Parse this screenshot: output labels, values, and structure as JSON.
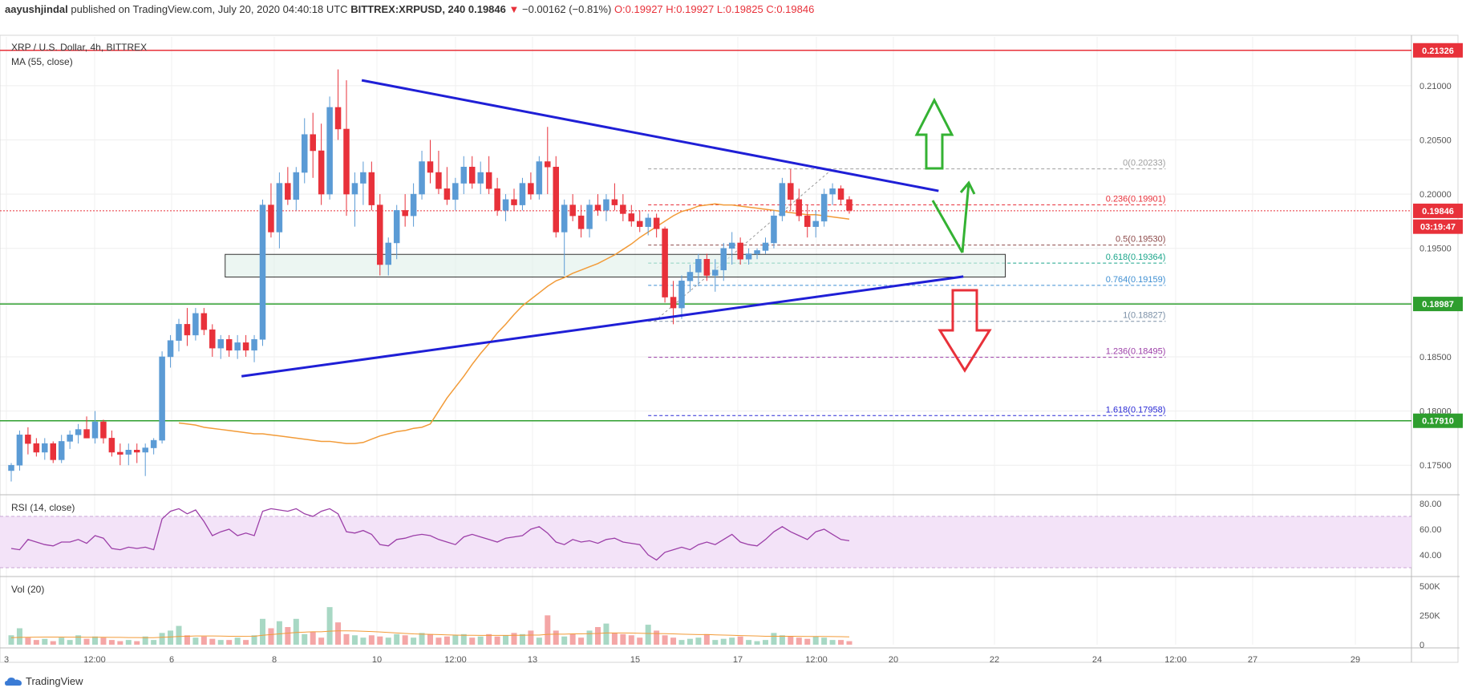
{
  "header": {
    "author": "aayushjindal",
    "published": "published on TradingView.com, July 20, 2020 04:40:18 UTC",
    "symbol_line": "BITTREX:XRPUSD, 240",
    "last": "0.19846",
    "change": "−0.00162 (−0.81%)",
    "ohlc": "O:0.19927 H:0.19927 L:0.19825 C:0.19846"
  },
  "legend": {
    "title": "XRP / U.S. Dollar, 4h, BITTREX",
    "ma": "MA (55, close)",
    "rsi": "RSI (14, close)",
    "vol": "Vol (20)"
  },
  "brand": {
    "name": "TradingView"
  },
  "colors": {
    "up": "#5b9bd5",
    "down": "#e8313a",
    "ma": "#f29b38",
    "trend": "#1f1fd6",
    "support": "#2e9e2e",
    "resistance": "#e8313a",
    "arrow_up": "#34b233",
    "arrow_down": "#e8313a",
    "rsi": "#9c3fa8",
    "rsi_band": "#f3e3f8"
  },
  "chart_data": {
    "type": "candlestick",
    "title": "XRP / U.S. Dollar, 4h, BITTREX",
    "ylim": [
      0.1725,
      0.2145
    ],
    "y_ticks": [
      "0.21000",
      "0.20500",
      "0.20000",
      "0.19500",
      "0.19000",
      "0.18500",
      "0.18000",
      "0.17500"
    ],
    "x_ticks": [
      "3",
      "12:00",
      "6",
      "8",
      "10",
      "12:00",
      "13",
      "15",
      "17",
      "12:00",
      "20",
      "22",
      "24",
      "12:00",
      "27",
      "29"
    ],
    "price_labels": [
      {
        "text": "0.21326",
        "value": 0.21326,
        "color": "#e8313a"
      },
      {
        "text": "0.19846",
        "value": 0.19846,
        "color": "#e8313a"
      },
      {
        "text": "03:19:47",
        "value": 0.197,
        "color": "#e8313a"
      },
      {
        "text": "0.18987",
        "value": 0.18987,
        "color": "#2e9e2e"
      },
      {
        "text": "0.17910",
        "value": 0.1791,
        "color": "#2e9e2e"
      }
    ],
    "horizontal_lines": [
      {
        "value": 0.21326,
        "color": "#e8313a",
        "style": "solid"
      },
      {
        "value": 0.19846,
        "color": "#e8313a",
        "style": "dotted"
      },
      {
        "value": 0.18987,
        "color": "#2e9e2e",
        "style": "solid"
      },
      {
        "value": 0.1791,
        "color": "#2e9e2e",
        "style": "solid"
      }
    ],
    "fib_levels": [
      {
        "label": "0(0.20233)",
        "value": 0.20233,
        "color": "#9e9e9e"
      },
      {
        "label": "0.236(0.19901)",
        "value": 0.19901,
        "color": "#e8313a"
      },
      {
        "label": "0.5(0.19530)",
        "value": 0.1953,
        "color": "#8d4a4a"
      },
      {
        "label": "0.618(0.19364)",
        "value": 0.19364,
        "color": "#1aa58a"
      },
      {
        "label": "0.764(0.19159)",
        "value": 0.19159,
        "color": "#3f8fd2"
      },
      {
        "label": "1(0.18827)",
        "value": 0.18827,
        "color": "#7a8fa6"
      },
      {
        "label": "1.236(0.18495)",
        "value": 0.18495,
        "color": "#9c3fa8"
      },
      {
        "label": "1.618(0.17958)",
        "value": 0.17958,
        "color": "#2a2ad6"
      }
    ],
    "ma_values": [
      0.1789,
      0.1788,
      0.1787,
      0.1785,
      0.1784,
      0.1783,
      0.1782,
      0.1781,
      0.178,
      0.1779,
      0.1779,
      0.1778,
      0.1777,
      0.1776,
      0.1775,
      0.1774,
      0.1773,
      0.1772,
      0.1772,
      0.1771,
      0.177,
      0.177,
      0.1771,
      0.1774,
      0.1777,
      0.1779,
      0.1781,
      0.1782,
      0.1784,
      0.1785,
      0.1788,
      0.18,
      0.1812,
      0.1822,
      0.1832,
      0.1843,
      0.1853,
      0.1862,
      0.1872,
      0.188,
      0.1889,
      0.1897,
      0.1903,
      0.1909,
      0.1915,
      0.192,
      0.1923,
      0.1927,
      0.193,
      0.1933,
      0.1936,
      0.194,
      0.1944,
      0.1949,
      0.1954,
      0.196,
      0.1965,
      0.197,
      0.1975,
      0.198,
      0.1984,
      0.1986,
      0.1989,
      0.199,
      0.1991,
      0.199,
      0.199,
      0.1989,
      0.1988,
      0.1987,
      0.1986,
      0.1985,
      0.1984,
      0.1983,
      0.1982,
      0.1981,
      0.1981,
      0.198,
      0.1979,
      0.1978,
      0.1977
    ],
    "candles": [
      [
        0.1745,
        0.1752,
        0.1735,
        0.175
      ],
      [
        0.175,
        0.1782,
        0.1745,
        0.1778
      ],
      [
        0.1778,
        0.1785,
        0.176,
        0.177
      ],
      [
        0.177,
        0.1775,
        0.1758,
        0.1762
      ],
      [
        0.1762,
        0.1775,
        0.1755,
        0.177
      ],
      [
        0.177,
        0.1772,
        0.1752,
        0.1755
      ],
      [
        0.1755,
        0.1778,
        0.1752,
        0.1772
      ],
      [
        0.1772,
        0.1782,
        0.1765,
        0.1778
      ],
      [
        0.1778,
        0.1788,
        0.177,
        0.1783
      ],
      [
        0.1783,
        0.1795,
        0.1775,
        0.1775
      ],
      [
        0.1775,
        0.18,
        0.177,
        0.179
      ],
      [
        0.179,
        0.1792,
        0.177,
        0.1775
      ],
      [
        0.1775,
        0.1782,
        0.1758,
        0.1762
      ],
      [
        0.1762,
        0.177,
        0.175,
        0.176
      ],
      [
        0.176,
        0.177,
        0.175,
        0.1764
      ],
      [
        0.1764,
        0.177,
        0.1752,
        0.1762
      ],
      [
        0.1762,
        0.177,
        0.174,
        0.1766
      ],
      [
        0.1766,
        0.1775,
        0.176,
        0.1773
      ],
      [
        0.1773,
        0.1855,
        0.177,
        0.185
      ],
      [
        0.185,
        0.187,
        0.184,
        0.1865
      ],
      [
        0.1865,
        0.1885,
        0.1855,
        0.188
      ],
      [
        0.188,
        0.1895,
        0.186,
        0.187
      ],
      [
        0.187,
        0.1895,
        0.1865,
        0.189
      ],
      [
        0.189,
        0.1895,
        0.187,
        0.1875
      ],
      [
        0.1875,
        0.188,
        0.185,
        0.1858
      ],
      [
        0.1858,
        0.187,
        0.1848,
        0.1866
      ],
      [
        0.1866,
        0.187,
        0.185,
        0.1856
      ],
      [
        0.1856,
        0.187,
        0.1848,
        0.1863
      ],
      [
        0.1863,
        0.187,
        0.185,
        0.1856
      ],
      [
        0.1856,
        0.187,
        0.1845,
        0.1866
      ],
      [
        0.1866,
        0.1995,
        0.186,
        0.199
      ],
      [
        0.199,
        0.201,
        0.196,
        0.1965
      ],
      [
        0.1965,
        0.202,
        0.195,
        0.201
      ],
      [
        0.201,
        0.2025,
        0.199,
        0.1995
      ],
      [
        0.1995,
        0.2025,
        0.1985,
        0.202
      ],
      [
        0.202,
        0.207,
        0.201,
        0.2055
      ],
      [
        0.2055,
        0.2075,
        0.2015,
        0.204
      ],
      [
        0.204,
        0.2065,
        0.199,
        0.2
      ],
      [
        0.2,
        0.209,
        0.1995,
        0.208
      ],
      [
        0.208,
        0.2115,
        0.205,
        0.206
      ],
      [
        0.206,
        0.2105,
        0.198,
        0.2
      ],
      [
        0.2,
        0.202,
        0.197,
        0.201
      ],
      [
        0.201,
        0.203,
        0.199,
        0.202
      ],
      [
        0.202,
        0.203,
        0.1985,
        0.199
      ],
      [
        0.199,
        0.2,
        0.1925,
        0.1935
      ],
      [
        0.1935,
        0.196,
        0.1925,
        0.1955
      ],
      [
        0.1955,
        0.199,
        0.194,
        0.1985
      ],
      [
        0.1985,
        0.2,
        0.197,
        0.198
      ],
      [
        0.198,
        0.201,
        0.197,
        0.2
      ],
      [
        0.2,
        0.204,
        0.1995,
        0.203
      ],
      [
        0.203,
        0.205,
        0.201,
        0.202
      ],
      [
        0.202,
        0.204,
        0.2,
        0.2005
      ],
      [
        0.2005,
        0.2025,
        0.199,
        0.1995
      ],
      [
        0.1995,
        0.2015,
        0.1985,
        0.201
      ],
      [
        0.201,
        0.2035,
        0.2,
        0.2025
      ],
      [
        0.2025,
        0.2035,
        0.2005,
        0.201
      ],
      [
        0.201,
        0.203,
        0.2,
        0.202
      ],
      [
        0.202,
        0.2035,
        0.2,
        0.2005
      ],
      [
        0.2005,
        0.2015,
        0.198,
        0.1985
      ],
      [
        0.1985,
        0.2,
        0.1975,
        0.1995
      ],
      [
        0.1995,
        0.2005,
        0.1985,
        0.199
      ],
      [
        0.199,
        0.2015,
        0.1985,
        0.201
      ],
      [
        0.201,
        0.202,
        0.1995,
        0.2
      ],
      [
        0.2,
        0.2035,
        0.1995,
        0.203
      ],
      [
        0.203,
        0.2062,
        0.2,
        0.2025
      ],
      [
        0.2025,
        0.2035,
        0.196,
        0.1965
      ],
      [
        0.1965,
        0.1995,
        0.1925,
        0.199
      ],
      [
        0.199,
        0.2,
        0.1975,
        0.198
      ],
      [
        0.198,
        0.199,
        0.196,
        0.1968
      ],
      [
        0.1968,
        0.1995,
        0.196,
        0.199
      ],
      [
        0.199,
        0.2,
        0.198,
        0.1985
      ],
      [
        0.1985,
        0.2,
        0.1975,
        0.1995
      ],
      [
        0.1995,
        0.201,
        0.1985,
        0.199
      ],
      [
        0.199,
        0.2,
        0.1975,
        0.1982
      ],
      [
        0.1982,
        0.199,
        0.197,
        0.1975
      ],
      [
        0.1975,
        0.1985,
        0.1965,
        0.197
      ],
      [
        0.197,
        0.1982,
        0.1962,
        0.1978
      ],
      [
        0.1978,
        0.1982,
        0.196,
        0.1968
      ],
      [
        0.1968,
        0.197,
        0.19,
        0.1905
      ],
      [
        0.1905,
        0.192,
        0.188,
        0.1895
      ],
      [
        0.1895,
        0.1925,
        0.1885,
        0.192
      ],
      [
        0.192,
        0.1935,
        0.191,
        0.1928
      ],
      [
        0.1928,
        0.1945,
        0.1915,
        0.194
      ],
      [
        0.194,
        0.1945,
        0.192,
        0.1925
      ],
      [
        0.1925,
        0.194,
        0.191,
        0.193
      ],
      [
        0.193,
        0.1955,
        0.192,
        0.195
      ],
      [
        0.195,
        0.1965,
        0.1935,
        0.1955
      ],
      [
        0.1955,
        0.196,
        0.1935,
        0.194
      ],
      [
        0.194,
        0.195,
        0.1935,
        0.1945
      ],
      [
        0.1945,
        0.195,
        0.194,
        0.1948
      ],
      [
        0.1948,
        0.196,
        0.1945,
        0.1955
      ],
      [
        0.1955,
        0.1985,
        0.195,
        0.198
      ],
      [
        0.198,
        0.2015,
        0.1975,
        0.201
      ],
      [
        0.201,
        0.2023,
        0.1985,
        0.1995
      ],
      [
        0.1995,
        0.2005,
        0.1975,
        0.198
      ],
      [
        0.198,
        0.199,
        0.196,
        0.197
      ],
      [
        0.197,
        0.1985,
        0.196,
        0.1975
      ],
      [
        0.1975,
        0.2005,
        0.197,
        0.2
      ],
      [
        0.2,
        0.201,
        0.199,
        0.2005
      ],
      [
        0.2005,
        0.2008,
        0.199,
        0.1995
      ],
      [
        0.1995,
        0.1998,
        0.1982,
        0.1985
      ]
    ],
    "rsi_ylim": [
      25,
      85
    ],
    "rsi_ticks": [
      "80.00",
      "60.00",
      "40.00"
    ],
    "rsi_bands": [
      70,
      30
    ],
    "rsi_values": [
      45,
      44,
      52,
      50,
      48,
      47,
      50,
      50,
      52,
      49,
      55,
      53,
      45,
      44,
      46,
      45,
      46,
      44,
      68,
      74,
      76,
      72,
      75,
      66,
      55,
      58,
      60,
      55,
      57,
      55,
      74,
      76,
      75,
      74,
      76,
      72,
      70,
      74,
      76,
      72,
      58,
      57,
      59,
      56,
      48,
      47,
      52,
      53,
      55,
      56,
      55,
      52,
      50,
      48,
      54,
      56,
      54,
      52,
      50,
      53,
      54,
      55,
      60,
      62,
      57,
      50,
      48,
      52,
      50,
      51,
      49,
      52,
      53,
      50,
      49,
      48,
      40,
      36,
      42,
      44,
      46,
      44,
      48,
      50,
      48,
      52,
      56,
      50,
      48,
      47,
      52,
      58,
      62,
      58,
      55,
      52,
      58,
      60,
      56,
      52,
      51
    ],
    "vol_ylim": [
      0,
      560000
    ],
    "vol_ticks": [
      "500K",
      "250K",
      "0"
    ],
    "vol_values": [
      80,
      140,
      60,
      40,
      50,
      30,
      60,
      40,
      80,
      50,
      70,
      60,
      40,
      30,
      40,
      30,
      70,
      40,
      100,
      120,
      160,
      80,
      60,
      70,
      50,
      40,
      40,
      60,
      40,
      80,
      220,
      140,
      200,
      150,
      220,
      90,
      110,
      60,
      320,
      190,
      90,
      80,
      60,
      80,
      70,
      60,
      90,
      80,
      60,
      100,
      90,
      60,
      70,
      80,
      90,
      60,
      70,
      90,
      70,
      80,
      100,
      90,
      120,
      60,
      250,
      120,
      70,
      90,
      60,
      120,
      150,
      180,
      100,
      90,
      80,
      60,
      170,
      120,
      80,
      60,
      40,
      50,
      60,
      90,
      40,
      50,
      60,
      70,
      40,
      30,
      40,
      100,
      80,
      70,
      60,
      50,
      70,
      60,
      40,
      40,
      30
    ],
    "vol_ma": [
      60,
      62,
      63,
      64,
      65,
      65,
      65,
      64,
      64,
      63,
      63,
      63,
      62,
      62,
      61,
      61,
      60,
      60,
      63,
      66,
      70,
      72,
      74,
      74,
      74,
      73,
      72,
      72,
      71,
      72,
      80,
      86,
      92,
      98,
      104,
      107,
      110,
      110,
      115,
      118,
      118,
      117,
      114,
      112,
      108,
      104,
      100,
      96,
      92,
      90,
      88,
      86,
      84,
      82,
      80,
      80,
      79,
      79,
      79,
      79,
      80,
      80,
      82,
      82,
      88,
      90,
      90,
      92,
      92,
      94,
      96,
      100,
      100,
      100,
      99,
      97,
      96,
      95,
      94,
      92,
      90,
      88,
      86,
      86,
      84,
      82,
      80,
      78,
      76,
      74,
      72,
      72,
      72,
      72,
      71,
      70,
      70,
      70,
      69,
      68,
      67
    ]
  },
  "drawings": {
    "upper_trend": [
      {
        "idx": 38,
        "value": 0.2105
      },
      {
        "idx": 103,
        "value": 0.2003
      }
    ],
    "lower_trend": [
      {
        "idx": 16,
        "value": 0.1832
      },
      {
        "idx": 105,
        "value": 0.1924
      }
    ],
    "support_box": {
      "idx_start": 15,
      "idx_end": 119,
      "top": 0.194,
      "bottom": 0.1928
    },
    "fib_start_idx": 76,
    "fib_end_idx": 132
  }
}
